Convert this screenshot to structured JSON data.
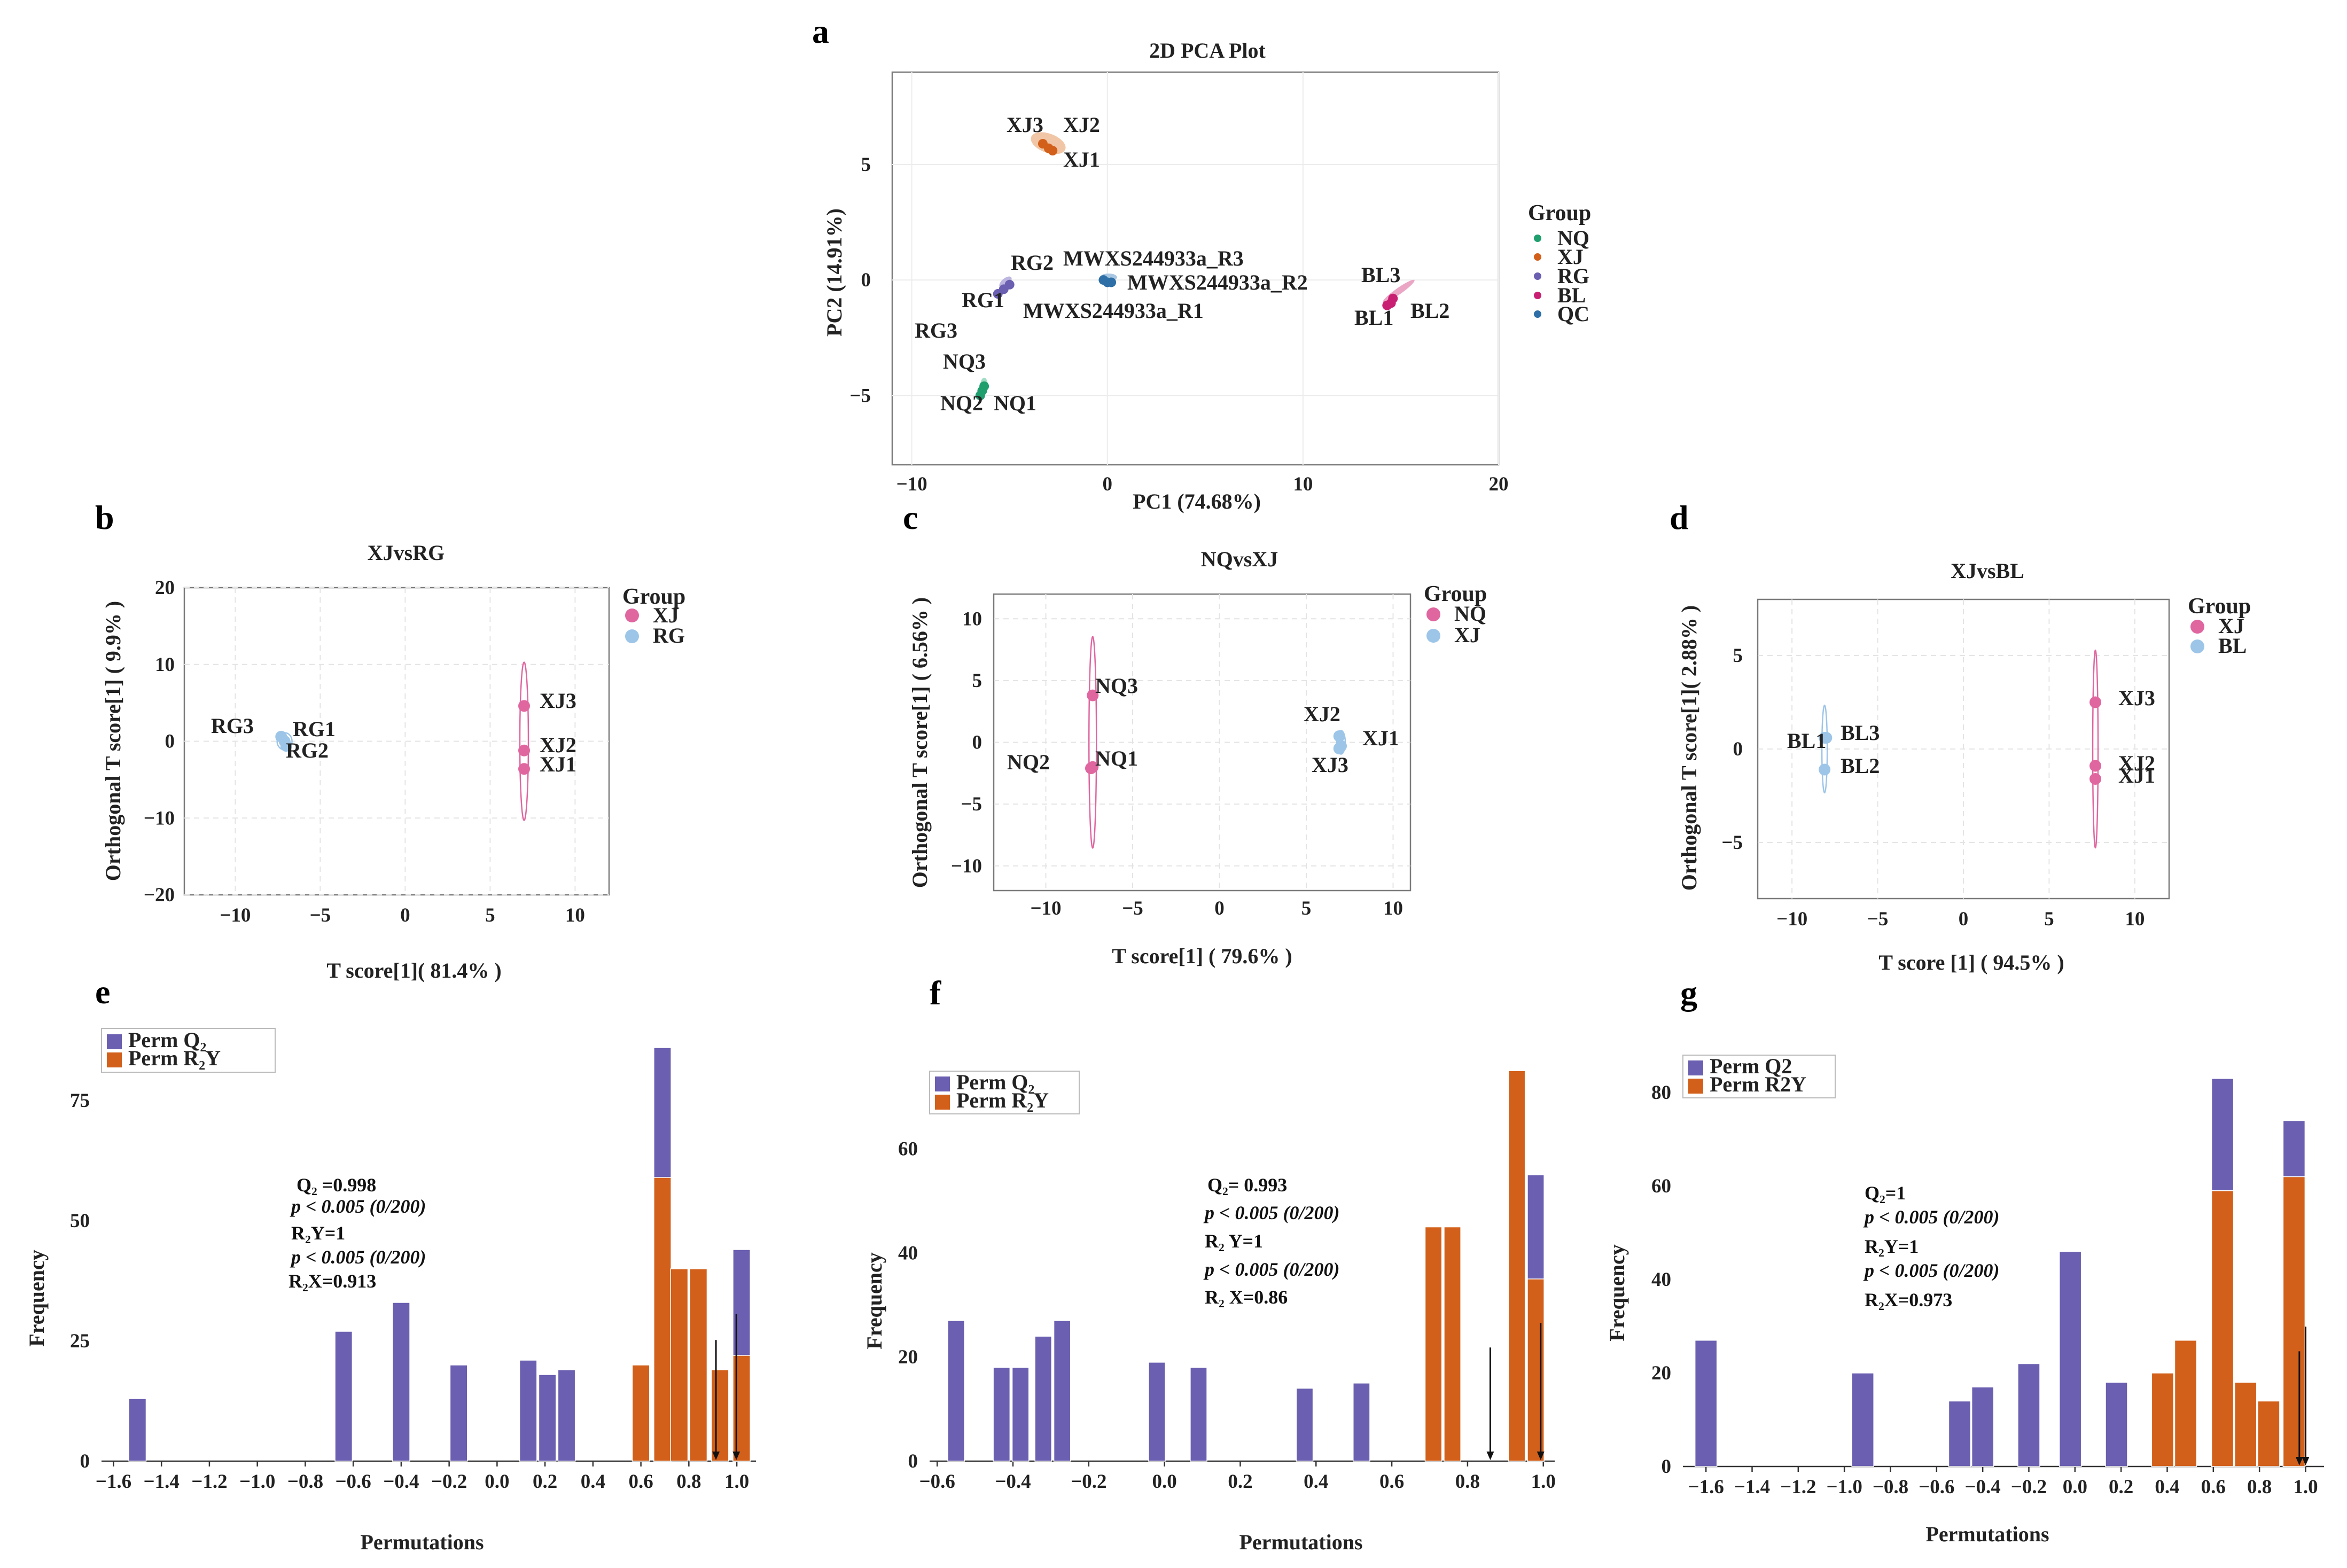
{
  "panels": {
    "a": {
      "letter": "a",
      "title": "2D PCA Plot",
      "xlabel": "PC1 (74.68%)",
      "ylabel": "PC2 (14.91%)"
    },
    "b": {
      "letter": "b",
      "title": "XJvsRG",
      "xlabel": "T score[1]( 81.4% )",
      "ylabel": "Orthogonal T score[1] ( 9.9% )"
    },
    "c": {
      "letter": "c",
      "title": "NQvsXJ",
      "xlabel": "T score[1] ( 79.6% )",
      "ylabel": "Orthogonal T score[1] ( 6.56% )"
    },
    "d": {
      "letter": "d",
      "title": "XJvsBL",
      "xlabel": "T score [1] ( 94.5% )",
      "ylabel": "Orthogonal T score[1]( 2.88% )"
    },
    "e": {
      "letter": "e",
      "xlabel": "Permutations",
      "ylabel": "Frequency"
    },
    "f": {
      "letter": "f",
      "xlabel": "Permutations",
      "ylabel": "Frequency"
    },
    "g": {
      "letter": "g",
      "xlabel": "Permutations",
      "ylabel": "Frequency"
    }
  },
  "legends": {
    "a": {
      "title": "Group",
      "items": [
        {
          "label": "NQ",
          "color": "#1f9e6e"
        },
        {
          "label": "XJ",
          "color": "#d2601a"
        },
        {
          "label": "RG",
          "color": "#6a5fb0"
        },
        {
          "label": "BL",
          "color": "#c81f72"
        },
        {
          "label": "QC",
          "color": "#2d6fa6"
        }
      ]
    },
    "b": {
      "title": "Group",
      "items": [
        {
          "label": "XJ",
          "color": "#e066a0"
        },
        {
          "label": "RG",
          "color": "#9dc5e8"
        }
      ]
    },
    "c": {
      "title": "Group",
      "items": [
        {
          "label": "NQ",
          "color": "#e066a0"
        },
        {
          "label": "XJ",
          "color": "#9dc5e8"
        }
      ]
    },
    "d": {
      "title": "Group",
      "items": [
        {
          "label": "XJ",
          "color": "#e066a0"
        },
        {
          "label": "BL",
          "color": "#9dc5e8"
        }
      ]
    },
    "e": {
      "items": [
        {
          "label": "Perm Q₂",
          "color": "#6a5fb0"
        },
        {
          "label": "Perm R₂Y",
          "color": "#d2601a"
        }
      ]
    },
    "f": {
      "items": [
        {
          "label": "Perm Q₂",
          "color": "#6a5fb0"
        },
        {
          "label": "Perm R₂Y",
          "color": "#d2601a"
        }
      ]
    },
    "g": {
      "items": [
        {
          "label": "Perm Q2",
          "color": "#6a5fb0"
        },
        {
          "label": "Perm R2Y",
          "color": "#d2601a"
        }
      ]
    }
  },
  "stats": {
    "e": {
      "l1": "Q₂ =0.998",
      "l2": "p < 0.005 (0/200)",
      "l3": "R₂Y=1",
      "l4": "p < 0.005 (0/200)",
      "l5": "R₂X=0.913"
    },
    "f": {
      "l1": "Q₂= 0.993",
      "l2": "p < 0.005 (0/200)",
      "l3": "R₂ Y=1",
      "l4": "p < 0.005 (0/200)",
      "l5": "R₂ X=0.86"
    },
    "g": {
      "l1": "Q₂=1",
      "l2": "p < 0.005 (0/200)",
      "l3": "R₂Y=1",
      "l4": "p < 0.005 (0/200)",
      "l5": "R₂X=0.973"
    }
  },
  "chart_data": [
    {
      "id": "a",
      "type": "scatter",
      "title": "2D PCA Plot",
      "xlabel": "PC1 (74.68%)",
      "ylabel": "PC2 (14.91%)",
      "xlim": [
        -11,
        20
      ],
      "ylim": [
        -8,
        9
      ],
      "xticks": [
        -10,
        0,
        10,
        20
      ],
      "yticks": [
        -5,
        0,
        5
      ],
      "points": [
        {
          "label": "XJ3",
          "group": "XJ",
          "x": -3.3,
          "y": 5.9
        },
        {
          "label": "XJ2",
          "group": "XJ",
          "x": -3.0,
          "y": 5.7
        },
        {
          "label": "XJ1",
          "group": "XJ",
          "x": -2.8,
          "y": 5.6
        },
        {
          "label": "RG2",
          "group": "RG",
          "x": -5.0,
          "y": -0.2
        },
        {
          "label": "RG1",
          "group": "RG",
          "x": -5.3,
          "y": -0.4
        },
        {
          "label": "RG3",
          "group": "RG",
          "x": -5.6,
          "y": -0.6
        },
        {
          "label": "MWXS244933a_R3",
          "group": "QC",
          "x": -0.2,
          "y": 0.0
        },
        {
          "label": "MWXS244933a_R2",
          "group": "QC",
          "x": 0.0,
          "y": -0.1
        },
        {
          "label": "MWXS244933a_R1",
          "group": "QC",
          "x": 0.2,
          "y": -0.1
        },
        {
          "label": "BL3",
          "group": "BL",
          "x": 14.6,
          "y": -0.8
        },
        {
          "label": "BL1",
          "group": "BL",
          "x": 14.3,
          "y": -1.1
        },
        {
          "label": "BL2",
          "group": "BL",
          "x": 14.5,
          "y": -1.0
        },
        {
          "label": "NQ3",
          "group": "NQ",
          "x": -6.3,
          "y": -4.6
        },
        {
          "label": "NQ2",
          "group": "NQ",
          "x": -6.4,
          "y": -4.8
        },
        {
          "label": "NQ1",
          "group": "NQ",
          "x": -6.5,
          "y": -5.0
        }
      ]
    },
    {
      "id": "b",
      "type": "scatter",
      "title": "XJvsRG",
      "xlabel": "T score[1]( 81.4% )",
      "ylabel": "Orthogonal T score[1] ( 9.9% )",
      "xlim": [
        -13,
        12
      ],
      "ylim": [
        -20,
        20
      ],
      "xticks": [
        -10,
        -5,
        0,
        5,
        10
      ],
      "yticks": [
        -20,
        -10,
        0,
        10,
        20
      ],
      "points": [
        {
          "label": "XJ3",
          "group": "XJ",
          "x": 7.0,
          "y": 4.6
        },
        {
          "label": "XJ2",
          "group": "XJ",
          "x": 7.0,
          "y": -1.2
        },
        {
          "label": "XJ1",
          "group": "XJ",
          "x": 7.0,
          "y": -3.6
        },
        {
          "label": "RG3",
          "group": "RG",
          "x": -7.3,
          "y": 0.6
        },
        {
          "label": "RG1",
          "group": "RG",
          "x": -7.1,
          "y": 0.0
        },
        {
          "label": "RG2",
          "group": "RG",
          "x": -7.0,
          "y": -0.6
        }
      ]
    },
    {
      "id": "c",
      "type": "scatter",
      "title": "NQvsXJ",
      "xlabel": "T score[1] ( 79.6% )",
      "ylabel": "Orthogonal T score[1] ( 6.56% )",
      "xlim": [
        -13,
        11
      ],
      "ylim": [
        -12,
        12
      ],
      "xticks": [
        -10,
        -5,
        0,
        5,
        10
      ],
      "yticks": [
        -10,
        -5,
        0,
        5,
        10
      ],
      "points": [
        {
          "label": "NQ3",
          "group": "NQ",
          "x": -7.3,
          "y": 3.8
        },
        {
          "label": "NQ1",
          "group": "NQ",
          "x": -7.3,
          "y": -2.0
        },
        {
          "label": "NQ2",
          "group": "NQ",
          "x": -7.4,
          "y": -2.1
        },
        {
          "label": "XJ2",
          "group": "XJ",
          "x": 6.9,
          "y": 0.5
        },
        {
          "label": "XJ1",
          "group": "XJ",
          "x": 7.0,
          "y": -0.3
        },
        {
          "label": "XJ3",
          "group": "XJ",
          "x": 6.9,
          "y": -0.5
        }
      ]
    },
    {
      "id": "d",
      "type": "scatter",
      "title": "XJvsBL",
      "xlabel": "T score [1] ( 94.5% )",
      "ylabel": "Orthogonal T score[1]( 2.88% )",
      "xlim": [
        -12,
        12
      ],
      "ylim": [
        -8,
        8
      ],
      "xticks": [
        -10,
        -5,
        0,
        5,
        10
      ],
      "yticks": [
        -5,
        0,
        5
      ],
      "points": [
        {
          "label": "XJ3",
          "group": "XJ",
          "x": 7.7,
          "y": 2.5
        },
        {
          "label": "XJ2",
          "group": "XJ",
          "x": 7.7,
          "y": -0.9
        },
        {
          "label": "XJ1",
          "group": "XJ",
          "x": 7.7,
          "y": -1.6
        },
        {
          "label": "BL1",
          "group": "BL",
          "x": -8.1,
          "y": 0.6
        },
        {
          "label": "BL3",
          "group": "BL",
          "x": -8.0,
          "y": 0.6
        },
        {
          "label": "BL2",
          "group": "BL",
          "x": -8.1,
          "y": -1.1
        }
      ]
    },
    {
      "id": "e",
      "type": "bar",
      "xlabel": "Permutations",
      "ylabel": "Frequency",
      "xlim": [
        -1.65,
        1.08
      ],
      "ylim": [
        0,
        90
      ],
      "binwidth": 0.072,
      "xticks": [
        -1.6,
        -1.4,
        -1.2,
        -1.0,
        -0.8,
        -0.6,
        -0.4,
        -0.2,
        0.0,
        0.2,
        0.4,
        0.6,
        0.8,
        1.0
      ],
      "yticks": [
        0,
        25,
        50,
        75
      ],
      "series": [
        {
          "name": "Perm Q₂",
          "bins": [
            [
              -1.5,
              13
            ],
            [
              -0.64,
              27
            ],
            [
              -0.4,
              33
            ],
            [
              -0.16,
              20
            ],
            [
              0.13,
              21
            ],
            [
              0.21,
              18
            ],
            [
              0.29,
              19
            ],
            [
              0.69,
              86
            ],
            [
              1.02,
              44
            ]
          ]
        },
        {
          "name": "Perm R₂Y",
          "bins": [
            [
              0.6,
              20
            ],
            [
              0.69,
              59
            ],
            [
              0.76,
              40
            ],
            [
              0.84,
              40
            ],
            [
              0.93,
              19
            ],
            [
              1.02,
              22
            ]
          ]
        }
      ],
      "markers": [
        0.913,
        0.998
      ]
    },
    {
      "id": "f",
      "type": "bar",
      "xlabel": "Permutations",
      "ylabel": "Frequency",
      "xlim": [
        -0.62,
        1.03
      ],
      "ylim": [
        0,
        78
      ],
      "binwidth": 0.044,
      "xticks": [
        -0.6,
        -0.4,
        -0.2,
        0.0,
        0.2,
        0.4,
        0.6,
        0.8,
        1.0
      ],
      "yticks": [
        0,
        20,
        40,
        60
      ],
      "series": [
        {
          "name": "Perm Q₂",
          "bins": [
            [
              -0.55,
              27
            ],
            [
              -0.43,
              18
            ],
            [
              -0.38,
              18
            ],
            [
              -0.32,
              24
            ],
            [
              -0.27,
              27
            ],
            [
              -0.02,
              19
            ],
            [
              0.09,
              18
            ],
            [
              0.37,
              14
            ],
            [
              0.52,
              15
            ],
            [
              0.98,
              55
            ]
          ]
        },
        {
          "name": "Perm R₂Y",
          "bins": [
            [
              0.71,
              45
            ],
            [
              0.76,
              45
            ],
            [
              0.93,
              75
            ],
            [
              0.98,
              35
            ]
          ]
        }
      ],
      "markers": [
        0.86,
        0.993
      ]
    },
    {
      "id": "g",
      "type": "bar",
      "xlabel": "Permutations",
      "ylabel": "Frequency",
      "xlim": [
        -1.7,
        1.08
      ],
      "ylim": [
        0,
        88
      ],
      "binwidth": 0.095,
      "xticks": [
        -1.6,
        -1.4,
        -1.2,
        -1.0,
        -0.8,
        -0.6,
        -0.4,
        -0.2,
        0.0,
        0.2,
        0.4,
        0.6,
        0.8,
        1.0
      ],
      "yticks": [
        0,
        20,
        40,
        60,
        80
      ],
      "series": [
        {
          "name": "Perm Q2",
          "bins": [
            [
              -1.6,
              27
            ],
            [
              -0.92,
              20
            ],
            [
              -0.5,
              14
            ],
            [
              -0.4,
              17
            ],
            [
              -0.2,
              22
            ],
            [
              -0.02,
              46
            ],
            [
              0.18,
              18
            ],
            [
              0.64,
              83
            ],
            [
              0.95,
              74
            ]
          ]
        },
        {
          "name": "Perm R2Y",
          "bins": [
            [
              0.38,
              20
            ],
            [
              0.48,
              27
            ],
            [
              0.64,
              59
            ],
            [
              0.74,
              18
            ],
            [
              0.84,
              14
            ],
            [
              0.95,
              62
            ]
          ]
        }
      ],
      "markers": [
        0.973,
        1.0
      ]
    }
  ]
}
